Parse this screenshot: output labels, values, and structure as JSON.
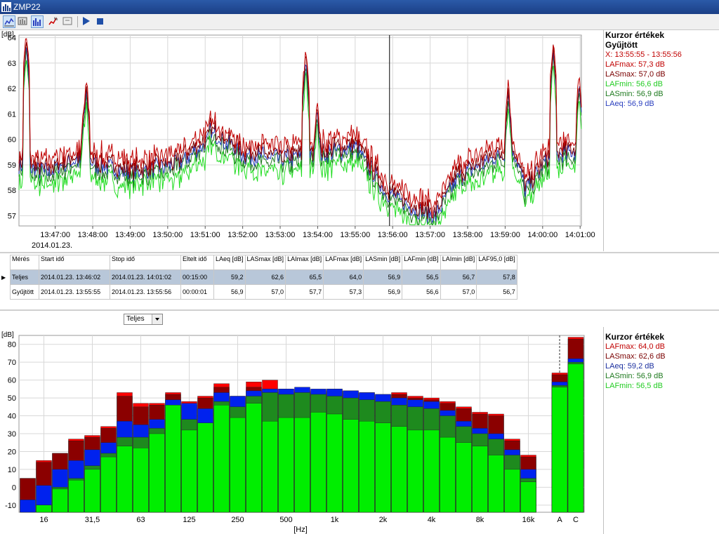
{
  "window": {
    "title": "ZMP22"
  },
  "colors": {
    "LAFmax": "#c00000",
    "LASmax": "#7a0000",
    "LAeq": "#2a3fbf",
    "LASmin": "#1f7a1f",
    "LAFmin": "#22dd22",
    "bar_LAFmax": "#ff0000",
    "bar_LASmax": "#8b0000",
    "bar_LAeq": "#0022ee",
    "bar_LASmin": "#1e8a1e",
    "bar_LAFmin": "#00ee00"
  },
  "time_chart": {
    "type": "line",
    "ylabel": "[dB]",
    "ylim": [
      56.6,
      64.1
    ],
    "yticks": [
      "57",
      "58",
      "59",
      "60",
      "61",
      "62",
      "63",
      "64"
    ],
    "xticks": [
      "13:47:00",
      "13:48:00",
      "13:49:00",
      "13:50:00",
      "13:51:00",
      "13:52:00",
      "13:53:00",
      "13:54:00",
      "13:55:00",
      "13:56:00",
      "13:57:00",
      "13:58:00",
      "13:59:00",
      "14:00:00",
      "14:01:00"
    ],
    "date_label": "2014.01.23.",
    "cursor_time": "13:55:55"
  },
  "time_cursor": {
    "title1": "Kurzor értékek",
    "title2": "Gyűjtött",
    "x": "X: 13:55:55 - 13:55:56",
    "LAFmax": "LAFmax: 57,3 dB",
    "LASmax": "LASmax: 57,0 dB",
    "LAFmin": "LAFmin: 56,6 dB",
    "LASmin": "LASmin: 56,9 dB",
    "LAeq": "LAeq: 56,9 dB"
  },
  "table": {
    "headers": [
      "Mérés",
      "Start idő",
      "Stop idő",
      "Eltelt idő",
      "LAeq [dB]",
      "LASmax [dB]",
      "LAImax [dB]",
      "LAFmax [dB]",
      "LASmin [dB]",
      "LAFmin [dB]",
      "LAImin [dB]",
      "LAF95,0 [dB]"
    ],
    "rows": [
      [
        "Teljes",
        "2014.01.23. 13:46:02",
        "2014.01.23. 14:01:02",
        "00:15:00",
        "59,2",
        "62,6",
        "65,5",
        "64,0",
        "56,9",
        "56,5",
        "56,7",
        "57,8"
      ],
      [
        "Gyűjtött",
        "2014.01.23. 13:55:55",
        "2014.01.23. 13:55:56",
        "00:00:01",
        "56,9",
        "57,0",
        "57,7",
        "57,3",
        "56,9",
        "56,6",
        "57,0",
        "56,7"
      ]
    ]
  },
  "spectrum_select": {
    "value": "Teljes"
  },
  "chart_data": {
    "type": "bar",
    "ylabel": "[dB]",
    "xlabel": "[Hz]",
    "ylim": [
      -14,
      85
    ],
    "yticks": [
      "-10",
      "0",
      "10",
      "20",
      "30",
      "40",
      "50",
      "60",
      "70",
      "80"
    ],
    "categories": [
      "12.5",
      "16",
      "20",
      "25",
      "31,5",
      "40",
      "50",
      "63",
      "80",
      "100",
      "125",
      "160",
      "200",
      "250",
      "315",
      "400",
      "500",
      "630",
      "800",
      "1k",
      "1.25k",
      "1.6k",
      "2k",
      "2.5k",
      "3.15k",
      "4k",
      "5k",
      "6.3k",
      "8k",
      "10k",
      "12.5k",
      "16k",
      "20k"
    ],
    "xtick_labels": {
      "16": "16",
      "31,5": "31,5",
      "63": "63",
      "125": "125",
      "250": "250",
      "500": "500",
      "1k": "1k",
      "2k": "2k",
      "4k": "4k",
      "8k": "8k",
      "16k": "16k"
    },
    "series": [
      {
        "name": "LAFmax",
        "values": [
          5,
          15,
          19,
          27,
          29,
          34,
          53,
          47,
          47,
          53,
          48,
          51,
          58,
          51,
          59,
          60,
          55,
          55,
          54,
          55,
          54,
          53,
          52,
          53,
          51,
          50,
          48,
          45,
          42,
          41,
          27,
          18,
          -14
        ]
      },
      {
        "name": "LASmax",
        "values": [
          5,
          14,
          19,
          26,
          28,
          33,
          51,
          45,
          46,
          52,
          46,
          50,
          56,
          50,
          56,
          55,
          53,
          54,
          53,
          54,
          53,
          52,
          51,
          52,
          50,
          49,
          47,
          44,
          41,
          40,
          26,
          17,
          -14
        ]
      },
      {
        "name": "LAeq",
        "values": [
          -7,
          1,
          10,
          15,
          21,
          25,
          37,
          35,
          38,
          49,
          47,
          44,
          53,
          51,
          54,
          55,
          55,
          56,
          55,
          55,
          54,
          53,
          52,
          50,
          49,
          48,
          43,
          37,
          33,
          30,
          21,
          10,
          -14
        ]
      },
      {
        "name": "LASmin",
        "values": [
          -14,
          -10,
          0,
          5,
          12,
          19,
          28,
          28,
          33,
          45,
          38,
          36,
          48,
          45,
          51,
          53,
          52,
          53,
          52,
          51,
          50,
          49,
          48,
          46,
          45,
          44,
          40,
          34,
          30,
          27,
          18,
          5,
          -14
        ]
      },
      {
        "name": "LAFmin",
        "values": [
          -14,
          -10,
          -1,
          4,
          10,
          17,
          23,
          22,
          30,
          46,
          32,
          36,
          46,
          39,
          47,
          37,
          39,
          39,
          42,
          41,
          38,
          37,
          36,
          34,
          32,
          32,
          28,
          25,
          23,
          18,
          10,
          3,
          -14
        ]
      }
    ],
    "broadband": {
      "categories": [
        "A",
        "C"
      ],
      "LAFmax": [
        64,
        84
      ],
      "LASmax": [
        63,
        83
      ],
      "LAeq": [
        59,
        72
      ],
      "LASmin": [
        57,
        70
      ],
      "LAFmin": [
        56,
        69
      ]
    }
  },
  "spectrum_cursor": {
    "title": "Kurzor értékek",
    "LAFmax": "LAFmax: 64,0 dB",
    "LASmax": "LASmax: 62,6 dB",
    "LAeq": "LAeq: 59,2 dB",
    "LASmin": "LASmin: 56,9 dB",
    "LAFmin": "LAFmin: 56,5 dB"
  }
}
